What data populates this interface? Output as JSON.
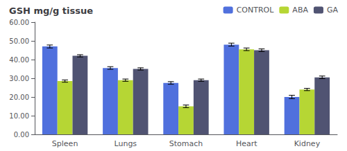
{
  "chart_data": {
    "type": "bar",
    "title": "GSH mg/g tissue",
    "categories": [
      "Spleen",
      "Lungs",
      "Stomach",
      "Heart",
      "Kidney"
    ],
    "series": [
      {
        "name": "CONTROL",
        "values": [
          47.0,
          35.5,
          27.5,
          48.0,
          20.0
        ],
        "errors": [
          0.8,
          0.7,
          0.7,
          0.8,
          0.9
        ]
      },
      {
        "name": "ABA",
        "values": [
          28.5,
          29.0,
          15.0,
          45.5,
          24.0
        ],
        "errors": [
          0.6,
          0.6,
          0.7,
          0.7,
          0.6
        ]
      },
      {
        "name": "GA",
        "values": [
          42.0,
          35.0,
          29.0,
          45.0,
          30.5
        ],
        "errors": [
          0.6,
          0.6,
          0.6,
          0.7,
          0.7
        ]
      }
    ],
    "ylim": [
      0,
      60
    ],
    "yticks": [
      {
        "value": 0,
        "label": "0.00"
      },
      {
        "value": 10,
        "label": "10.00"
      },
      {
        "value": 20,
        "label": "20.00"
      },
      {
        "value": 30,
        "label": "30.00"
      },
      {
        "value": 40,
        "label": "40.00"
      },
      {
        "value": 50,
        "label": "50.00"
      },
      {
        "value": 60,
        "label": "60.00"
      }
    ],
    "grid": false,
    "legend": "upper right"
  }
}
